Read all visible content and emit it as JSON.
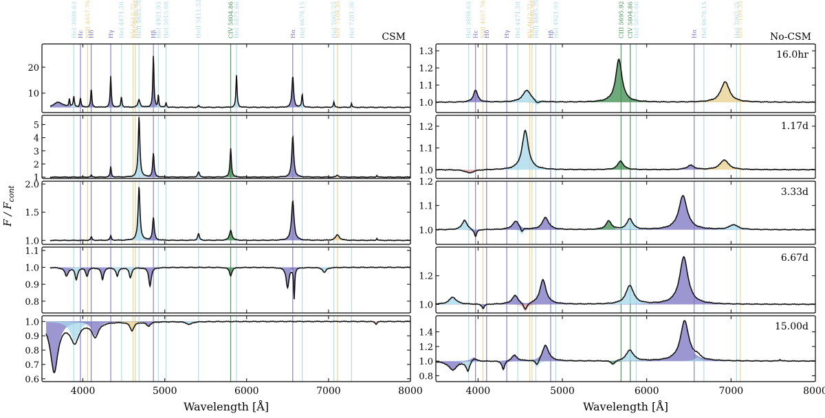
{
  "figure": {
    "ylabel": "F / F_cont",
    "ylabel_main": "F / F",
    "ylabel_sub": "cont"
  },
  "colors": {
    "H": "#7b74c2",
    "He": "#a7d8ea",
    "N": "#e8cf8e",
    "C": "#3c8c4f",
    "O": "#e9a3a1",
    "model": "#9aa0a8",
    "data": "#111111"
  },
  "line_markers": [
    {
      "label": "HeI 3888.63 Å",
      "wl": 3888.63,
      "el": "He"
    },
    {
      "label": "Hε",
      "wl": 3970.07,
      "el": "H"
    },
    {
      "label": "NIII 4057.76 Å",
      "wl": 4057.76,
      "el": "N"
    },
    {
      "label": "Hδ",
      "wl": 4101.74,
      "el": "H"
    },
    {
      "label": "Hγ",
      "wl": 4340.47,
      "el": "H"
    },
    {
      "label": "HeI 4471.50 Å",
      "wl": 4471.5,
      "el": "He"
    },
    {
      "label": "NV 4612.72 Å",
      "wl": 4612.72,
      "el": "N"
    },
    {
      "label": "NIII 4640.64 Å",
      "wl": 4640.64,
      "el": "N"
    },
    {
      "label": "HeII 4685.70 Å",
      "wl": 4685.7,
      "el": "He"
    },
    {
      "label": "Hβ",
      "wl": 4861.33,
      "el": "H"
    },
    {
      "label": "HeI 4921.93 Å",
      "wl": 4921.93,
      "el": "He"
    },
    {
      "label": "HeI 5015.68 Å",
      "wl": 5015.68,
      "el": "He"
    },
    {
      "label": "HeII 5411.52 Å",
      "wl": 5411.52,
      "el": "He"
    },
    {
      "label": "CIII 5695.92 Å",
      "wl": 5695.92,
      "el": "C"
    },
    {
      "label": "CIV 5804.86 Å",
      "wl": 5804.86,
      "el": "C"
    },
    {
      "label": "HeI 5875.66 Å",
      "wl": 5875.66,
      "el": "He"
    },
    {
      "label": "Hα",
      "wl": 6562.8,
      "el": "H"
    },
    {
      "label": "HeI 6678.15 Å",
      "wl": 6678.15,
      "el": "He"
    },
    {
      "label": "HeI 7065.25 Å",
      "wl": 7065.25,
      "el": "He"
    },
    {
      "label": "NIV 7109.35 Å",
      "wl": 7109.35,
      "el": "N"
    },
    {
      "label": "HeI 7281.36 Å",
      "wl": 7281.36,
      "el": "He"
    }
  ],
  "chart_data": [
    {
      "type": "line",
      "title": "CSM",
      "xlabel": "Wavelength [Å]",
      "ylabel": "F / F_cont",
      "xlim": [
        3500,
        8000
      ],
      "xticks": [
        4000,
        5000,
        6000,
        7000,
        8000
      ],
      "markers": [
        "HeI 3888.63 Å",
        "Hε",
        "NIII 4057.76 Å",
        "Hδ",
        "Hγ",
        "HeI 4471.50 Å",
        "NV 4612.72 Å",
        "NIII 4640.64 Å",
        "HeII 4685.70 Å",
        "Hβ",
        "HeI 4921.93 Å",
        "HeI 5015.68 Å",
        "HeII 5411.52 Å",
        "CIV 5804.86 Å",
        "HeI 5875.66 Å",
        "Hα",
        "HeI 6678.15 Å",
        "HeI 7065.25 Å",
        "NIV 7109.35 Å",
        "HeI 7281.36 Å"
      ],
      "panels": [
        {
          "label": "",
          "ylim": [
            2.5,
            29
          ],
          "yticks": [
            10,
            20
          ],
          "start_wl": 3600,
          "base": 4.5,
          "features": [
            {
              "wl": 3700,
              "amp": 2,
              "w": 60,
              "el": "H"
            },
            {
              "wl": 3835,
              "amp": 3,
              "w": 8,
              "el": "H"
            },
            {
              "wl": 3889,
              "amp": 4,
              "w": 8,
              "el": "He"
            },
            {
              "wl": 3970,
              "amp": 3.5,
              "w": 8,
              "el": "H"
            },
            {
              "wl": 4102,
              "amp": 7,
              "w": 8,
              "el": "H"
            },
            {
              "wl": 4340,
              "amp": 12,
              "w": 8,
              "el": "H"
            },
            {
              "wl": 4471,
              "amp": 4,
              "w": 8,
              "el": "He"
            },
            {
              "wl": 4686,
              "amp": 3,
              "w": 15,
              "el": "He"
            },
            {
              "wl": 4861,
              "amp": 20,
              "w": 8,
              "el": "H"
            },
            {
              "wl": 4922,
              "amp": 5,
              "w": 6,
              "el": "He"
            },
            {
              "wl": 5016,
              "amp": 2,
              "w": 6,
              "el": "He"
            },
            {
              "wl": 5412,
              "amp": 0.8,
              "w": 8,
              "el": "He"
            },
            {
              "wl": 5876,
              "amp": 12.5,
              "w": 8,
              "el": "He"
            },
            {
              "wl": 6563,
              "amp": 12,
              "w": 12,
              "el": "H"
            },
            {
              "wl": 6678,
              "amp": 5,
              "w": 8,
              "el": "He"
            },
            {
              "wl": 7065,
              "amp": 2,
              "w": 8,
              "el": "He"
            },
            {
              "wl": 7281,
              "amp": 1.5,
              "w": 6,
              "el": "He"
            }
          ]
        },
        {
          "label": "",
          "ylim": [
            0.9,
            5.7
          ],
          "yticks": [
            1,
            2,
            3,
            4,
            5
          ],
          "start_wl": 3600,
          "base": 1.0,
          "features": [
            {
              "wl": 4102,
              "amp": 0.15,
              "w": 8,
              "el": "H"
            },
            {
              "wl": 4340,
              "amp": 0.8,
              "w": 8,
              "el": "H"
            },
            {
              "wl": 4686,
              "amp": 4.6,
              "w": 12,
              "el": "He"
            },
            {
              "wl": 4861,
              "amp": 1.8,
              "w": 10,
              "el": "H"
            },
            {
              "wl": 5412,
              "amp": 0.4,
              "w": 12,
              "el": "He"
            },
            {
              "wl": 5805,
              "amp": 2.2,
              "w": 10,
              "el": "C"
            },
            {
              "wl": 6563,
              "amp": 3.1,
              "w": 14,
              "el": "H"
            },
            {
              "wl": 7109,
              "amp": 0.15,
              "w": 15,
              "el": "N"
            },
            {
              "wl": 7590,
              "amp": 0.15,
              "w": 6,
              "el": "He"
            }
          ]
        },
        {
          "label": "",
          "ylim": [
            0.93,
            2.05
          ],
          "yticks": [
            1.0,
            1.5,
            2.0
          ],
          "start_wl": 3600,
          "base": 1.0,
          "features": [
            {
              "wl": 4102,
              "amp": 0.06,
              "w": 10,
              "el": "H"
            },
            {
              "wl": 4340,
              "amp": 0.08,
              "w": 10,
              "el": "H"
            },
            {
              "wl": 4686,
              "amp": 0.95,
              "w": 14,
              "el": "He"
            },
            {
              "wl": 4861,
              "amp": 0.4,
              "w": 12,
              "el": "H"
            },
            {
              "wl": 5412,
              "amp": 0.12,
              "w": 12,
              "el": "He"
            },
            {
              "wl": 5805,
              "amp": 0.18,
              "w": 18,
              "el": "C"
            },
            {
              "wl": 6563,
              "amp": 0.7,
              "w": 18,
              "el": "H"
            },
            {
              "wl": 7109,
              "amp": 0.1,
              "w": 28,
              "el": "N"
            },
            {
              "wl": 7590,
              "amp": 0.04,
              "w": 6,
              "el": "He"
            }
          ]
        },
        {
          "label": "",
          "ylim": [
            0.73,
            1.12
          ],
          "yticks": [
            0.8,
            0.9,
            1.0,
            1.1
          ],
          "start_wl": 3600,
          "base": 1.0,
          "features": [
            {
              "wl": 3800,
              "amp": -0.05,
              "w": 25,
              "el": "H"
            },
            {
              "wl": 3920,
              "amp": -0.07,
              "w": 18,
              "el": "He"
            },
            {
              "wl": 4050,
              "amp": -0.05,
              "w": 18,
              "el": "H"
            },
            {
              "wl": 4240,
              "amp": -0.07,
              "w": 18,
              "el": "H"
            },
            {
              "wl": 4420,
              "amp": -0.05,
              "w": 18,
              "el": "He"
            },
            {
              "wl": 4580,
              "amp": -0.06,
              "w": 18,
              "el": "He"
            },
            {
              "wl": 4820,
              "amp": -0.11,
              "w": 18,
              "el": "H"
            },
            {
              "wl": 5805,
              "amp": -0.05,
              "w": 18,
              "el": "C"
            },
            {
              "wl": 6500,
              "amp": -0.12,
              "w": 20,
              "el": "H"
            },
            {
              "wl": 6580,
              "amp": -0.18,
              "w": 8,
              "el": "H"
            },
            {
              "wl": 6950,
              "amp": -0.03,
              "w": 25,
              "el": "He"
            }
          ]
        },
        {
          "label": "",
          "ylim": [
            0.58,
            1.04
          ],
          "yticks": [
            0.6,
            0.7,
            0.8,
            0.9,
            1.0
          ],
          "start_wl": 3550,
          "base": 1.0,
          "features": [
            {
              "wl": 3650,
              "amp": -0.35,
              "w": 55,
              "el": "H"
            },
            {
              "wl": 3900,
              "amp": -0.14,
              "w": 60,
              "el": "He"
            },
            {
              "wl": 4150,
              "amp": -0.1,
              "w": 50,
              "el": "H"
            },
            {
              "wl": 4600,
              "amp": -0.06,
              "w": 30,
              "el": "N"
            },
            {
              "wl": 4800,
              "amp": -0.03,
              "w": 30,
              "el": "H"
            },
            {
              "wl": 5300,
              "amp": -0.02,
              "w": 40,
              "el": "He"
            },
            {
              "wl": 7580,
              "amp": -0.02,
              "w": 12,
              "el": "O"
            }
          ]
        }
      ]
    },
    {
      "type": "line",
      "title": "No-CSM",
      "xlabel": "Wavelength [Å]",
      "ylabel": "F / F_cont",
      "xlim": [
        3500,
        8000
      ],
      "xticks": [
        4000,
        5000,
        6000,
        7000,
        8000
      ],
      "markers": [
        "HeI 3888.63 Å",
        "Hε",
        "NIII 4057.76 Å",
        "Hδ",
        "Hγ",
        "HeI 4471.50 Å",
        "NV 4612.72 Å",
        "NIII 4640.64 Å",
        "HeII 4685.70 Å",
        "Hβ",
        "HeI 4921.93 Å",
        "CIII 5695.92 Å",
        "CIV 5804.86 Å",
        "HeI 5875.66 Å",
        "Hα",
        "HeI 6678.15 Å",
        "HeI 7065.25 Å",
        "NIV 7109.35 Å"
      ],
      "panels": [
        {
          "label": "16.0hr",
          "ylim": [
            0.94,
            1.34
          ],
          "yticks": [
            1.0,
            1.1,
            1.2,
            1.3
          ],
          "start_wl": 3500,
          "base": 1.0,
          "features": [
            {
              "wl": 3970,
              "amp": 0.07,
              "w": 30,
              "el": "H"
            },
            {
              "wl": 4580,
              "amp": 0.07,
              "w": 60,
              "el": "He"
            },
            {
              "wl": 5670,
              "amp": 0.25,
              "w": 45,
              "el": "C"
            },
            {
              "wl": 6930,
              "amp": 0.12,
              "w": 60,
              "el": "N"
            },
            {
              "wl": 4700,
              "amp": -0.015,
              "w": 30,
              "el": "He"
            }
          ]
        },
        {
          "label": "1.17d",
          "ylim": [
            0.96,
            1.25
          ],
          "yticks": [
            1.0,
            1.1,
            1.2
          ],
          "start_wl": 3500,
          "base": 1.0,
          "features": [
            {
              "wl": 4560,
              "amp": 0.18,
              "w": 45,
              "el": "He"
            },
            {
              "wl": 5690,
              "amp": 0.04,
              "w": 40,
              "el": "C"
            },
            {
              "wl": 6520,
              "amp": 0.02,
              "w": 50,
              "el": "H"
            },
            {
              "wl": 6920,
              "amp": 0.045,
              "w": 60,
              "el": "N"
            },
            {
              "wl": 3900,
              "amp": -0.015,
              "w": 60,
              "el": "O"
            }
          ]
        },
        {
          "label": "3.33d",
          "ylim": [
            0.94,
            1.2
          ],
          "yticks": [
            1.0,
            1.1,
            1.2
          ],
          "start_wl": 3500,
          "base": 1.0,
          "features": [
            {
              "wl": 3840,
              "amp": 0.04,
              "w": 35,
              "el": "He"
            },
            {
              "wl": 4450,
              "amp": 0.035,
              "w": 50,
              "el": "H"
            },
            {
              "wl": 4800,
              "amp": 0.05,
              "w": 45,
              "el": "H"
            },
            {
              "wl": 5550,
              "amp": 0.035,
              "w": 40,
              "el": "C"
            },
            {
              "wl": 5800,
              "amp": 0.045,
              "w": 40,
              "el": "He"
            },
            {
              "wl": 6430,
              "amp": 0.14,
              "w": 60,
              "el": "H"
            },
            {
              "wl": 7030,
              "amp": 0.02,
              "w": 60,
              "el": "He"
            },
            {
              "wl": 3970,
              "amp": -0.03,
              "w": 18,
              "el": "H"
            },
            {
              "wl": 4520,
              "amp": -0.02,
              "w": 18,
              "el": "He"
            }
          ]
        },
        {
          "label": "6.67d",
          "ylim": [
            0.94,
            1.4
          ],
          "yticks": [
            1.0,
            1.2
          ],
          "start_wl": 3500,
          "base": 1.0,
          "features": [
            {
              "wl": 3700,
              "amp": 0.05,
              "w": 50,
              "el": "He"
            },
            {
              "wl": 4440,
              "amp": 0.06,
              "w": 45,
              "el": "H"
            },
            {
              "wl": 4770,
              "amp": 0.17,
              "w": 45,
              "el": "H"
            },
            {
              "wl": 5800,
              "amp": 0.13,
              "w": 55,
              "el": "He"
            },
            {
              "wl": 6440,
              "amp": 0.33,
              "w": 60,
              "el": "H"
            },
            {
              "wl": 4560,
              "amp": -0.05,
              "w": 25,
              "el": "O"
            },
            {
              "wl": 4060,
              "amp": -0.03,
              "w": 18,
              "el": "H"
            }
          ]
        },
        {
          "label": "15.00d",
          "ylim": [
            0.72,
            1.62
          ],
          "yticks": [
            0.8,
            1.0,
            1.2,
            1.4
          ],
          "start_wl": 3500,
          "base": 1.0,
          "features": [
            {
              "wl": 3950,
              "amp": 0.05,
              "w": 40,
              "el": "H"
            },
            {
              "wl": 4430,
              "amp": 0.08,
              "w": 40,
              "el": "H"
            },
            {
              "wl": 4800,
              "amp": 0.22,
              "w": 45,
              "el": "H"
            },
            {
              "wl": 5800,
              "amp": 0.15,
              "w": 50,
              "el": "He"
            },
            {
              "wl": 6450,
              "amp": 0.55,
              "w": 60,
              "el": "H"
            },
            {
              "wl": 6600,
              "amp": 0.05,
              "w": 40,
              "el": "He"
            },
            {
              "wl": 3700,
              "amp": -0.12,
              "w": 60,
              "el": "H"
            },
            {
              "wl": 3880,
              "amp": -0.14,
              "w": 25,
              "el": "He"
            },
            {
              "wl": 4300,
              "amp": -0.12,
              "w": 20,
              "el": "H"
            },
            {
              "wl": 4700,
              "amp": -0.08,
              "w": 25,
              "el": "He"
            },
            {
              "wl": 5600,
              "amp": -0.05,
              "w": 30,
              "el": "C"
            },
            {
              "wl": 7580,
              "amp": 0.02,
              "w": 12,
              "el": "O"
            }
          ]
        }
      ]
    }
  ]
}
